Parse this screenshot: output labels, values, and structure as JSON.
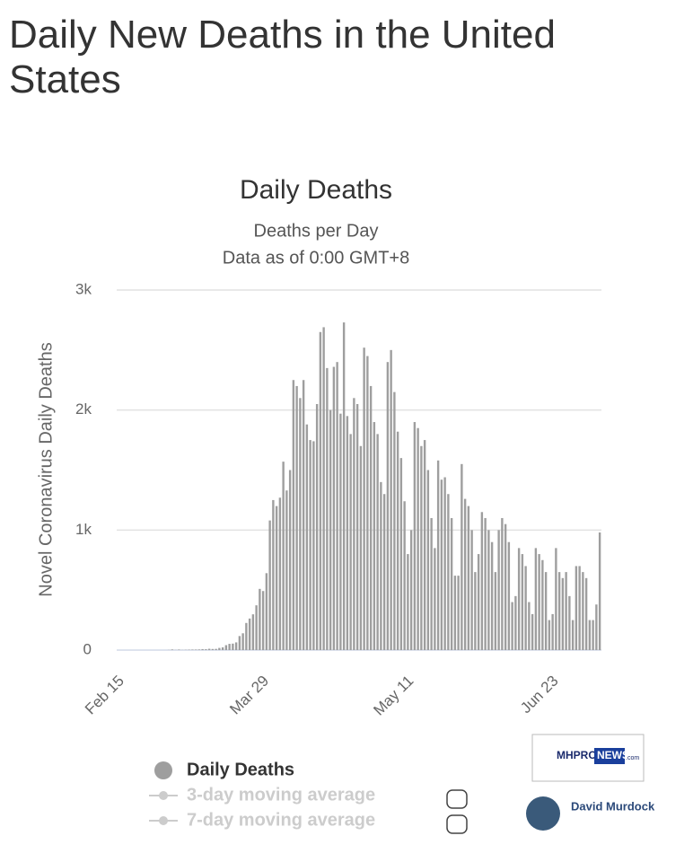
{
  "heading": "Daily New Deaths in the United States",
  "chart_data": {
    "type": "bar",
    "title": "Daily Deaths",
    "subtitle": [
      "Deaths per Day",
      "Data as of 0:00 GMT+8"
    ],
    "y_label": "Novel Coronavirus Daily Deaths",
    "categories": [
      "Feb 15",
      null,
      null,
      null,
      null,
      null,
      null,
      null,
      null,
      null,
      null,
      null,
      null,
      null,
      null,
      null,
      null,
      null,
      null,
      null,
      null,
      null,
      null,
      null,
      null,
      null,
      null,
      null,
      null,
      null,
      null,
      null,
      null,
      null,
      null,
      null,
      null,
      null,
      null,
      null,
      null,
      null,
      null,
      "Mar 29",
      null,
      null,
      null,
      null,
      null,
      null,
      null,
      null,
      null,
      null,
      null,
      null,
      null,
      null,
      null,
      null,
      null,
      null,
      null,
      null,
      null,
      null,
      null,
      null,
      null,
      null,
      null,
      null,
      null,
      null,
      null,
      null,
      null,
      null,
      null,
      null,
      null,
      null,
      null,
      null,
      null,
      null,
      "May 11",
      null,
      null,
      null,
      null,
      null,
      null,
      null,
      null,
      null,
      null,
      null,
      null,
      null,
      null,
      null,
      null,
      null,
      null,
      null,
      null,
      null,
      null,
      null,
      null,
      null,
      null,
      null,
      null,
      null,
      null,
      null,
      null,
      null,
      null,
      null,
      null,
      null,
      null,
      null,
      null,
      null,
      null,
      "Jun 23",
      null,
      null,
      null,
      null,
      null,
      null,
      null,
      null,
      null,
      null,
      null,
      null,
      null,
      null
    ],
    "series": [
      {
        "name": "Daily Deaths",
        "color": "#9e9e9e",
        "values": [
          0,
          0,
          0,
          0,
          0,
          0,
          0,
          0,
          0,
          0,
          0,
          0,
          0,
          0,
          0,
          1,
          5,
          1,
          4,
          1,
          2,
          3,
          4,
          4,
          5,
          8,
          7,
          11,
          9,
          10,
          18,
          23,
          41,
          52,
          54,
          64,
          117,
          140,
          226,
          263,
          298,
          373,
          510,
          492,
          641,
          1080,
          1250,
          1200,
          1270,
          1570,
          1330,
          1500,
          2250,
          2200,
          2100,
          2250,
          1880,
          1750,
          1740,
          2050,
          2650,
          2690,
          2350,
          2000,
          2360,
          2400,
          1970,
          2730,
          1950,
          1800,
          2100,
          2050,
          1700,
          2520,
          2450,
          2200,
          1900,
          1800,
          1400,
          1300,
          2400,
          2500,
          2150,
          1820,
          1600,
          1240,
          800,
          1000,
          1900,
          1850,
          1700,
          1750,
          1500,
          1100,
          850,
          1580,
          1420,
          1440,
          1300,
          1100,
          620,
          620,
          1550,
          1260,
          1200,
          1000,
          650,
          800,
          1150,
          1100,
          1000,
          900,
          650,
          1000,
          1100,
          1050,
          900,
          400,
          450,
          850,
          800,
          700,
          400,
          300,
          850,
          800,
          750,
          650,
          250,
          300,
          850,
          650,
          600,
          650,
          450,
          250,
          700,
          700,
          650,
          600,
          250,
          250,
          380,
          980
        ]
      }
    ],
    "legend_hidden": [
      "3-day moving average",
      "7-day moving average"
    ],
    "ylim": [
      0,
      3000
    ],
    "yticks": [
      0,
      {
        "value": 1000,
        "label": "1k"
      },
      {
        "value": 2000,
        "label": "2k"
      },
      {
        "value": 3000,
        "label": "3k"
      }
    ],
    "grid": true
  },
  "logo": [
    "MHPRO",
    "NEWS",
    ".com"
  ],
  "credit": "David Murdock"
}
